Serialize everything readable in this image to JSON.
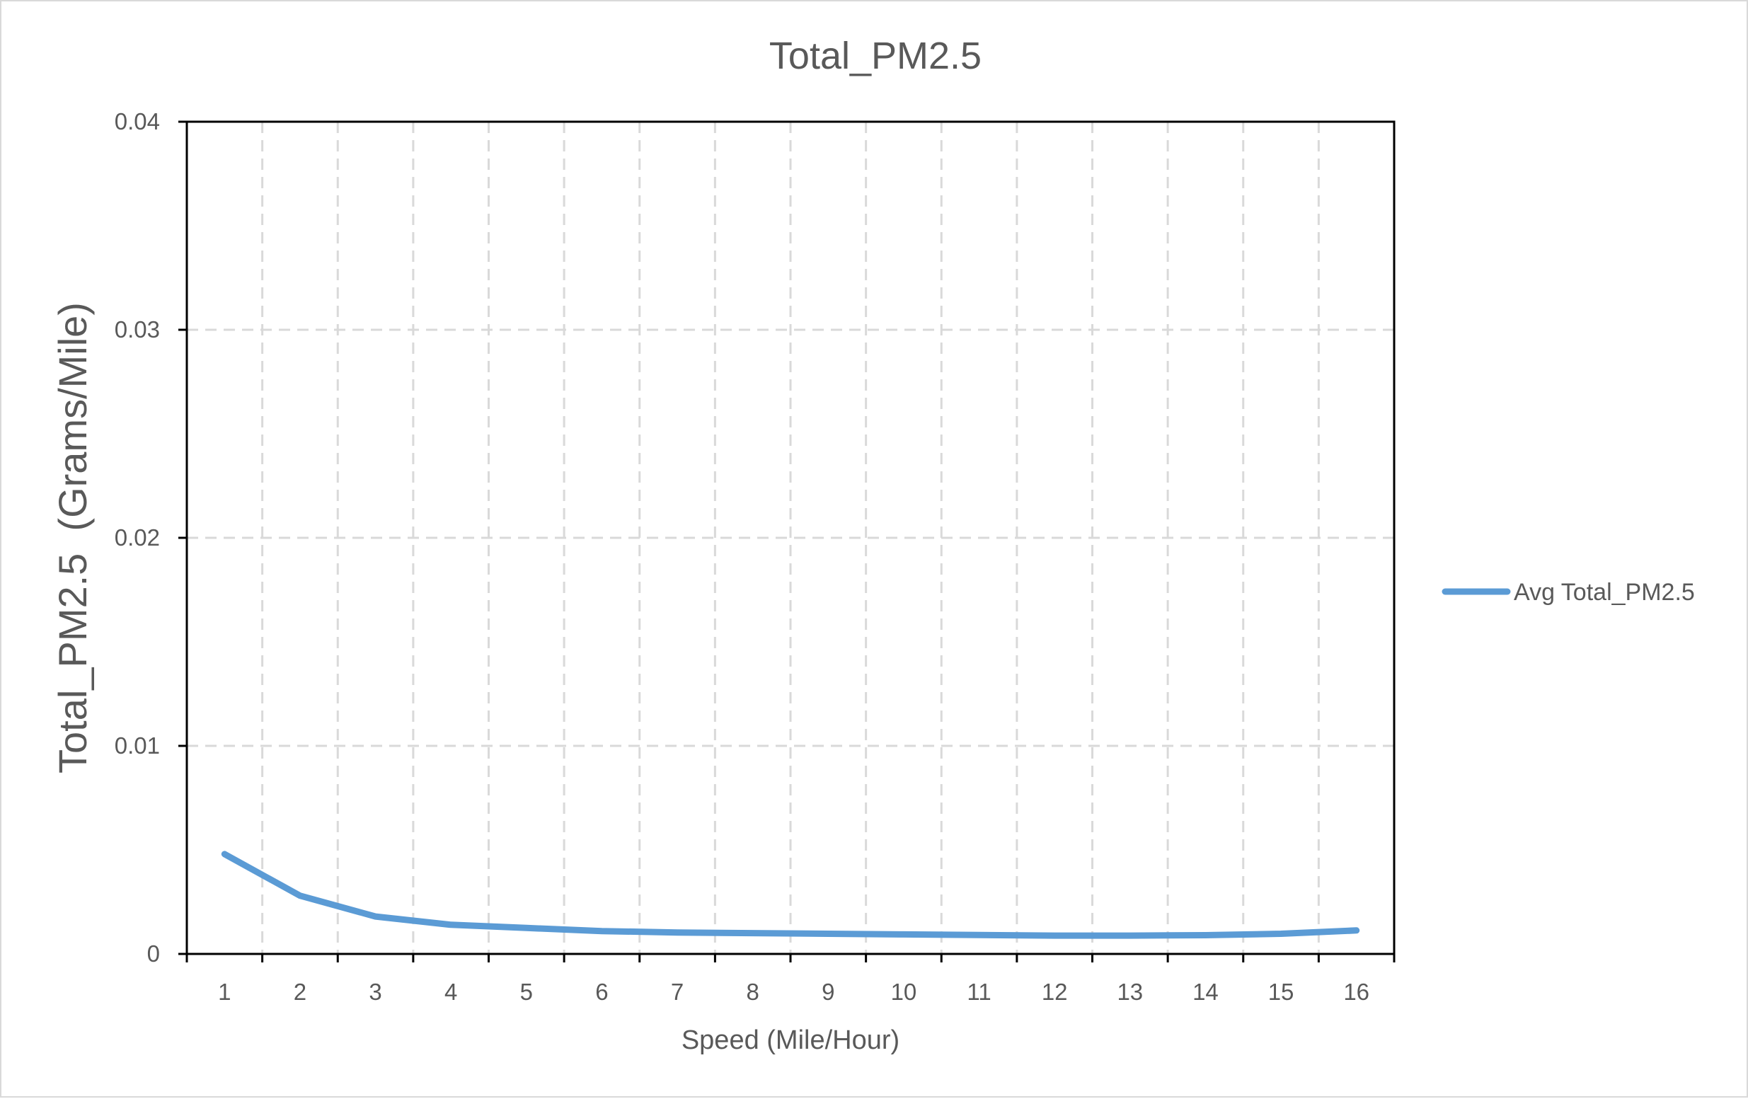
{
  "chart_data": {
    "type": "line",
    "title": "Total_PM2.5",
    "xlabel": "Speed (Mile/Hour)",
    "ylabel": "Total_PM2.5  (Grams/Mile)",
    "categories": [
      "1",
      "2",
      "3",
      "4",
      "5",
      "6",
      "7",
      "8",
      "9",
      "10",
      "11",
      "12",
      "13",
      "14",
      "15",
      "16"
    ],
    "y_ticks": [
      "0",
      "0.01",
      "0.02",
      "0.03",
      "0.04"
    ],
    "ylim": [
      0,
      0.04
    ],
    "grid": true,
    "legend_position": "right",
    "series": [
      {
        "name": "Avg Total_PM2.5",
        "color": "#5b9bd5",
        "values": [
          0.0048,
          0.0028,
          0.0018,
          0.0014,
          0.00125,
          0.0011,
          0.00103,
          0.001,
          0.00097,
          0.00094,
          0.00091,
          0.00088,
          0.00088,
          0.0009,
          0.00097,
          0.00113
        ]
      }
    ]
  }
}
